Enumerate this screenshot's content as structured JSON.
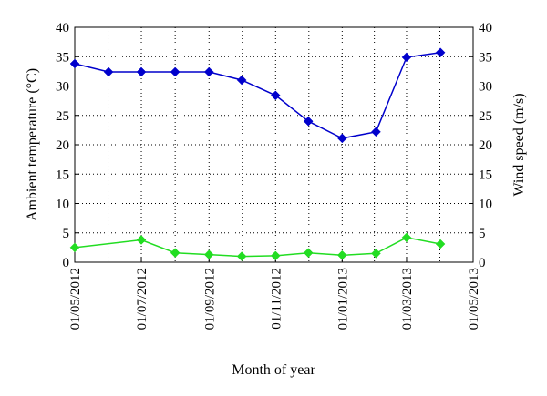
{
  "chart_data": {
    "type": "line",
    "xlabel": "Month of year",
    "ylabel_left": "Ambient temperature (°C)",
    "ylabel_right": "Wind speed (m/s)",
    "x_ticks": [
      "01/05/2012",
      "01/07/2012",
      "01/09/2012",
      "01/11/2012",
      "01/01/2013",
      "01/03/2013",
      "01/05/2013"
    ],
    "x_range": [
      "2012-05-01",
      "2013-05-01"
    ],
    "ylim_left": [
      0,
      40
    ],
    "ylim_right": [
      0,
      40
    ],
    "y_ticks_left": [
      0,
      5,
      10,
      15,
      20,
      25,
      30,
      35,
      40
    ],
    "y_ticks_right": [
      0,
      5,
      10,
      15,
      20,
      25,
      30,
      35,
      40
    ],
    "grid": "dotted",
    "series": [
      {
        "axis": "left",
        "color": "#0000cc",
        "marker": "diamond",
        "x": [
          "2012-05-01",
          "2012-06-01",
          "2012-07-01",
          "2012-08-01",
          "2012-09-01",
          "2012-10-01",
          "2012-11-01",
          "2012-12-01",
          "2013-01-01",
          "2013-02-01",
          "2013-03-01",
          "2013-04-01"
        ],
        "values": [
          33.8,
          32.4,
          32.4,
          32.4,
          32.4,
          31.0,
          28.4,
          24.0,
          21.1,
          22.2,
          34.9,
          35.7
        ]
      },
      {
        "axis": "right",
        "color": "#22dd22",
        "marker": "diamond",
        "x": [
          "2012-05-01",
          "2012-07-01",
          "2012-08-01",
          "2012-09-01",
          "2012-10-01",
          "2012-11-01",
          "2012-12-01",
          "2013-01-01",
          "2013-02-01",
          "2013-03-01",
          "2013-04-01"
        ],
        "values": [
          2.5,
          3.8,
          1.6,
          1.3,
          1.0,
          1.1,
          1.6,
          1.2,
          1.5,
          4.2,
          3.1
        ]
      }
    ]
  }
}
